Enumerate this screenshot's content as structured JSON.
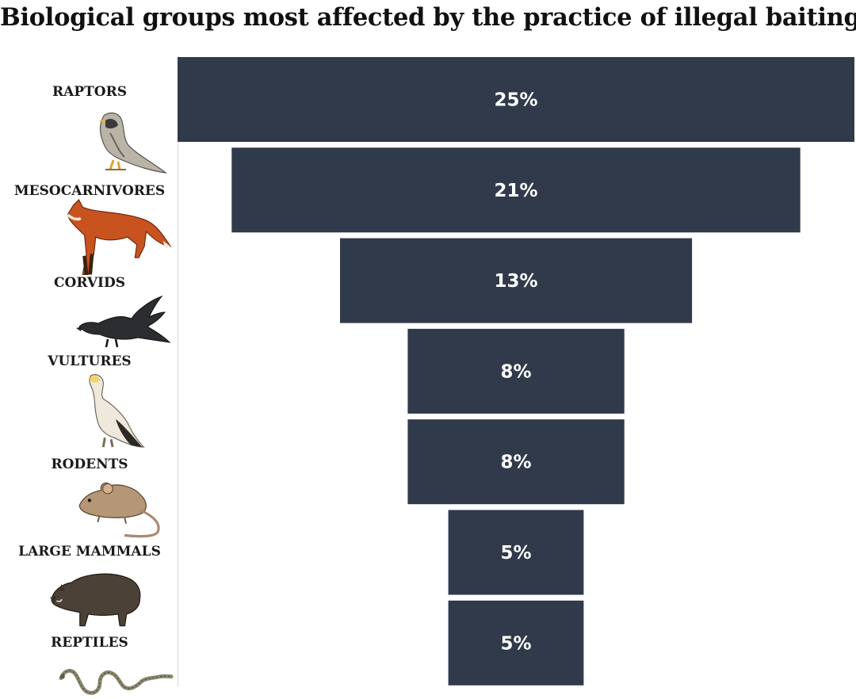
{
  "chart_data": {
    "type": "bar",
    "title": "Biological groups most affected by the practice of illegal baiting",
    "orientation": "horizontal-funnel",
    "categories": [
      "RAPTORS",
      "MESOCARNIVORES",
      "CORVIDS",
      "VULTURES",
      "RODENTS",
      "LARGE MAMMALS",
      "REPTILES"
    ],
    "values": [
      25,
      21,
      13,
      8,
      8,
      5,
      5
    ],
    "value_labels": [
      "25%",
      "21%",
      "13%",
      "8%",
      "8%",
      "5%",
      "5%"
    ],
    "icons": [
      "falcon-icon",
      "fox-icon",
      "crow-icon",
      "vulture-icon",
      "mouse-icon",
      "boar-icon",
      "snake-icon"
    ],
    "bar_color": "#313a4b",
    "label_color": "#ffffff",
    "legend": "none",
    "grid": false
  }
}
